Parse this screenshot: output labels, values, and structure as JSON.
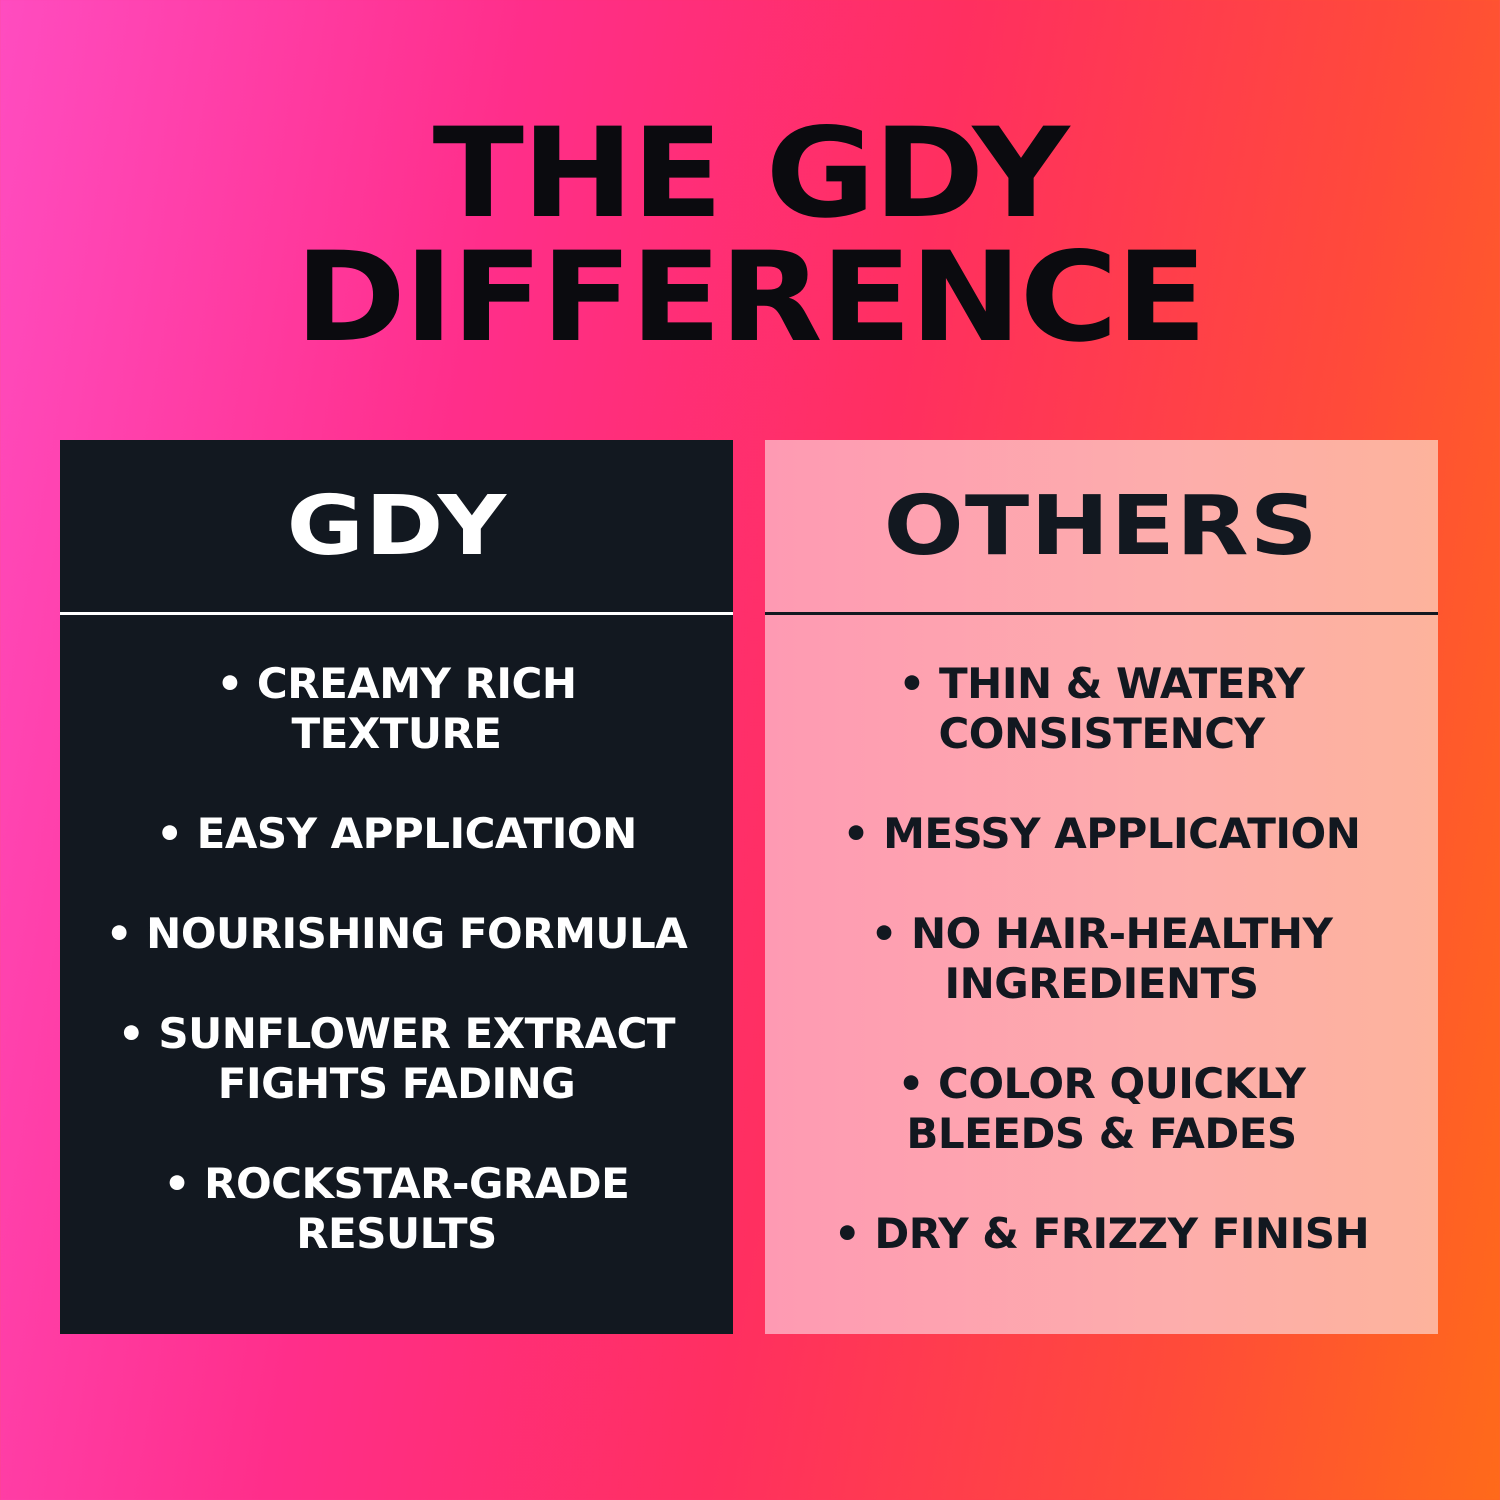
{
  "title": {
    "line1": "THE GDY",
    "line2": "DIFFERENCE"
  },
  "gdy": {
    "heading": "GDY",
    "items": [
      "• CREAMY RICH\nTEXTURE",
      "• EASY APPLICATION",
      "• NOURISHING FORMULA",
      "• SUNFLOWER EXTRACT\nFIGHTS FADING",
      "• ROCKSTAR-GRADE\nRESULTS"
    ]
  },
  "others": {
    "heading": "OTHERS",
    "items": [
      "• THIN & WATERY\nCONSISTENCY",
      "• MESSY APPLICATION",
      "• NO HAIR-HEALTHY\nINGREDIENTS",
      "• COLOR QUICKLY\nBLEEDS & FADES",
      "• DRY & FRIZZY FINISH"
    ]
  },
  "colors": {
    "gdy_panel": "#121820",
    "others_panel": "#fda5b0",
    "bg_left": "#ff4cc0",
    "bg_right": "#ff6a1a"
  }
}
